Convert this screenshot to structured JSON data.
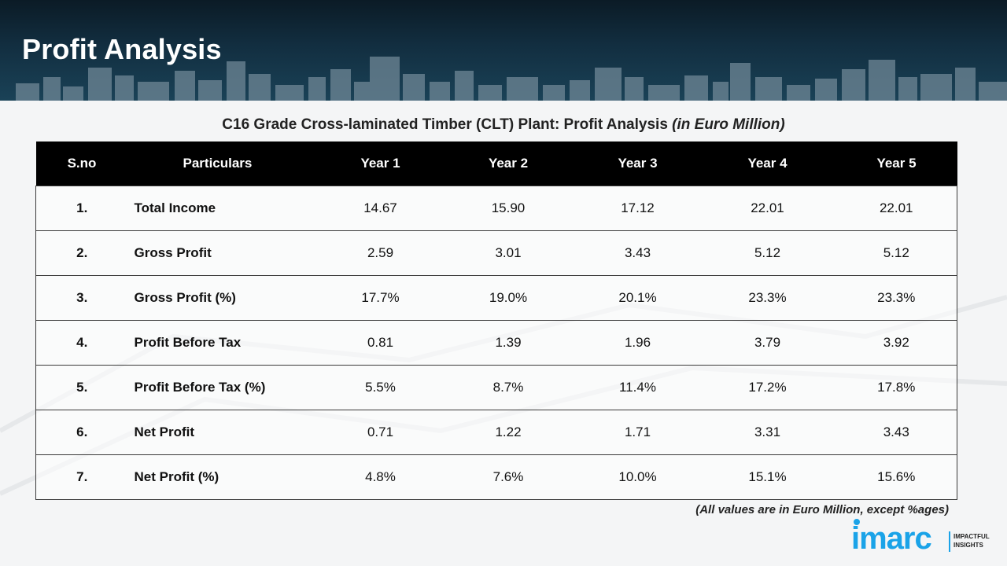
{
  "header": {
    "title": "Profit Analysis"
  },
  "table": {
    "title": "C16 Grade Cross-laminated Timber (CLT) Plant: Profit Analysis",
    "title_unit": "(in Euro Million)",
    "columns": [
      "S.no",
      "Particulars",
      "Year 1",
      "Year 2",
      "Year 3",
      "Year 4",
      "Year 5"
    ],
    "rows": [
      {
        "sno": "1.",
        "particular": "Total Income",
        "values": [
          "14.67",
          "15.90",
          "17.12",
          "22.01",
          "22.01"
        ]
      },
      {
        "sno": "2.",
        "particular": "Gross Profit",
        "values": [
          "2.59",
          "3.01",
          "3.43",
          "5.12",
          "5.12"
        ]
      },
      {
        "sno": "3.",
        "particular": "Gross Profit (%)",
        "values": [
          "17.7%",
          "19.0%",
          "20.1%",
          "23.3%",
          "23.3%"
        ]
      },
      {
        "sno": "4.",
        "particular": "Profit Before Tax",
        "values": [
          "0.81",
          "1.39",
          "1.96",
          "3.79",
          "3.92"
        ]
      },
      {
        "sno": "5.",
        "particular": "Profit Before Tax (%)",
        "values": [
          "5.5%",
          "8.7%",
          "11.4%",
          "17.2%",
          "17.8%"
        ]
      },
      {
        "sno": "6.",
        "particular": "Net Profit",
        "values": [
          "0.71",
          "1.22",
          "1.71",
          "3.31",
          "3.43"
        ]
      },
      {
        "sno": "7.",
        "particular": "Net Profit (%)",
        "values": [
          "4.8%",
          "7.6%",
          "10.0%",
          "15.1%",
          "15.6%"
        ]
      }
    ]
  },
  "footnote": "(All values are in Euro Million, except %ages)",
  "logo": {
    "wordmark": "imarc",
    "tagline_1": "IMPACTFUL",
    "tagline_2": "INSIGHTS"
  },
  "colors": {
    "header_dark": "#0b1b26",
    "table_header": "#000000",
    "brand": "#1aa3e8"
  }
}
